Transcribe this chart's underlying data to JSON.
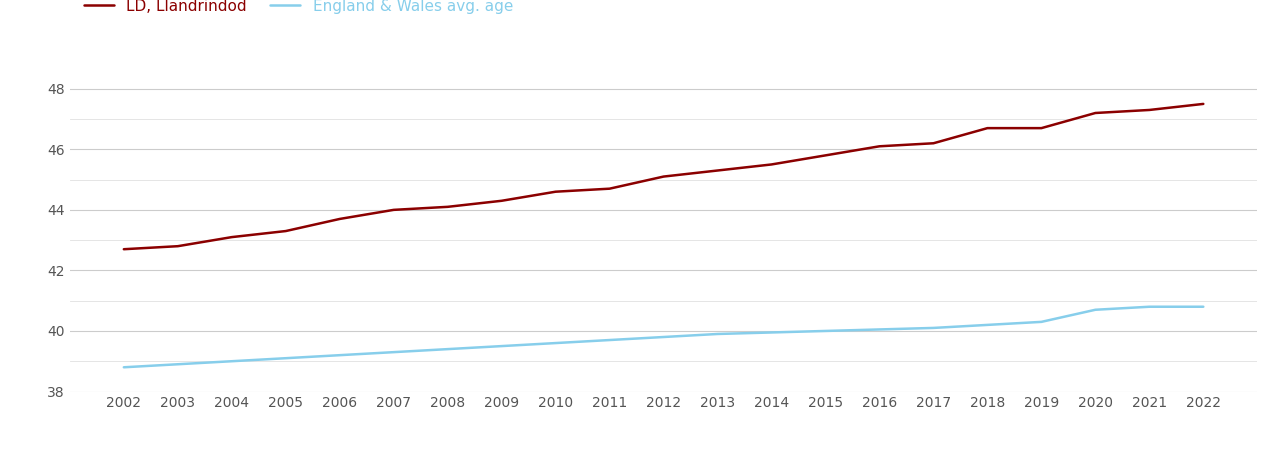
{
  "years": [
    2002,
    2003,
    2004,
    2005,
    2006,
    2007,
    2008,
    2009,
    2010,
    2011,
    2012,
    2013,
    2014,
    2015,
    2016,
    2017,
    2018,
    2019,
    2020,
    2021,
    2022
  ],
  "ld_llandrindod": [
    42.7,
    42.8,
    43.1,
    43.3,
    43.7,
    44.0,
    44.1,
    44.3,
    44.6,
    44.7,
    45.1,
    45.3,
    45.5,
    45.8,
    46.1,
    46.2,
    46.7,
    46.7,
    47.2,
    47.3,
    47.5
  ],
  "england_wales": [
    38.8,
    38.9,
    39.0,
    39.1,
    39.2,
    39.3,
    39.4,
    39.5,
    39.6,
    39.7,
    39.8,
    39.9,
    39.95,
    40.0,
    40.05,
    40.1,
    40.2,
    40.3,
    40.7,
    40.8,
    40.8
  ],
  "ld_color": "#8B0000",
  "ew_color": "#87CEEB",
  "ld_label": "LD, Llandrindod",
  "ew_label": "England & Wales avg. age",
  "ylim": [
    38,
    49
  ],
  "yticks_major": [
    38,
    40,
    42,
    44,
    46,
    48
  ],
  "yticks_minor": [
    39,
    41,
    43,
    45,
    47
  ],
  "background_color": "#ffffff",
  "line_width": 1.8,
  "legend_fontsize": 11,
  "tick_fontsize": 10,
  "grid_color_major": "#cccccc",
  "grid_color_minor": "#e0e0e0"
}
